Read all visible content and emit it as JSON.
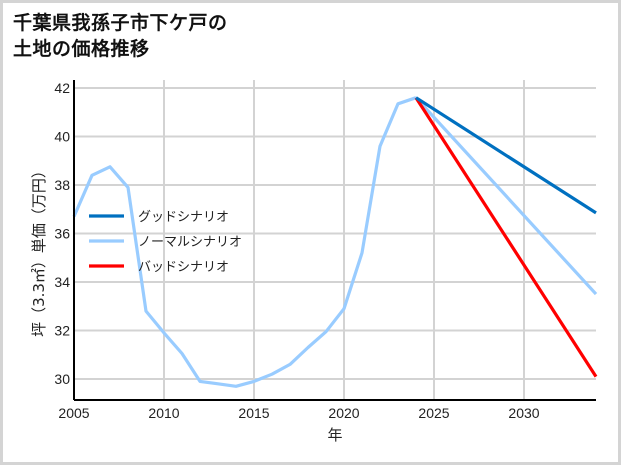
{
  "title": {
    "line1": "千葉県我孫子市下ケ戸の",
    "line2": "土地の価格推移"
  },
  "colors": {
    "good": "#0070C0",
    "normal": "#99CCFF",
    "bad": "#FF0000",
    "grid": "#d3d3d3",
    "axis": "#000000"
  },
  "chart_data": {
    "type": "line",
    "title": "千葉県我孫子市下ケ戸の土地の価格推移",
    "xlabel": "年",
    "ylabel": "坪（3.3㎡）単価（万円）",
    "xlim": [
      2005,
      2034
    ],
    "ylim": [
      29.1,
      42.1
    ],
    "xticks": [
      2005,
      2010,
      2015,
      2020,
      2025,
      2030
    ],
    "yticks": [
      30,
      32,
      34,
      36,
      38,
      40,
      42
    ],
    "grid": true,
    "legend_position": "left-middle",
    "series": [
      {
        "name": "ノーマルシナリオ",
        "role": "historical",
        "x": [
          2005,
          2006,
          2007,
          2008,
          2009,
          2010,
          2011,
          2012,
          2013,
          2014,
          2015,
          2016,
          2017,
          2018,
          2019,
          2020,
          2021,
          2022,
          2023,
          2024
        ],
        "y": [
          36.7,
          38.4,
          38.75,
          37.9,
          32.8,
          31.9,
          31.05,
          29.9,
          29.8,
          29.7,
          29.9,
          30.2,
          30.6,
          31.3,
          31.95,
          32.9,
          35.2,
          39.6,
          41.35,
          41.6
        ]
      },
      {
        "name": "グッドシナリオ",
        "x": [
          2024,
          2034
        ],
        "y": [
          41.6,
          36.85
        ]
      },
      {
        "name": "ノーマルシナリオ",
        "x": [
          2024,
          2034
        ],
        "y": [
          41.6,
          33.5
        ]
      },
      {
        "name": "バッドシナリオ",
        "x": [
          2024,
          2034
        ],
        "y": [
          41.6,
          30.1
        ]
      }
    ]
  },
  "legend": [
    {
      "label": "グッドシナリオ",
      "color": "#0070C0"
    },
    {
      "label": "ノーマルシナリオ",
      "color": "#99CCFF"
    },
    {
      "label": "バッドシナリオ",
      "color": "#FF0000"
    }
  ]
}
